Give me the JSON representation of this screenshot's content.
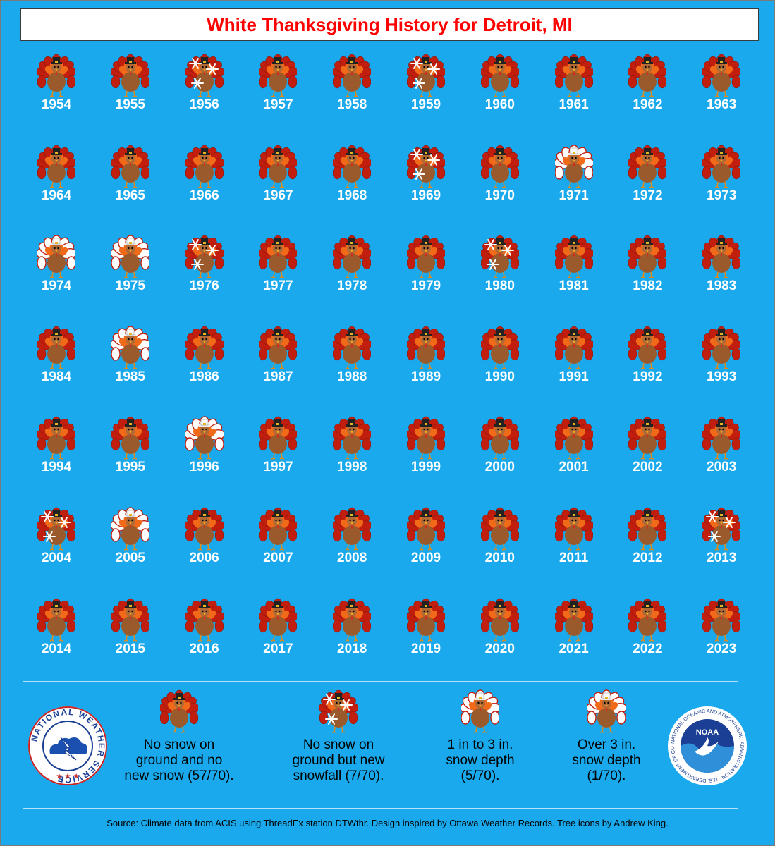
{
  "title": "White Thanksgiving History for Detroit, MI",
  "chart_data": {
    "type": "table",
    "years": [
      1954,
      1955,
      1956,
      1957,
      1958,
      1959,
      1960,
      1961,
      1962,
      1963,
      1964,
      1965,
      1966,
      1967,
      1968,
      1969,
      1970,
      1971,
      1972,
      1973,
      1974,
      1975,
      1976,
      1977,
      1978,
      1979,
      1980,
      1981,
      1982,
      1983,
      1984,
      1985,
      1986,
      1987,
      1988,
      1989,
      1990,
      1991,
      1992,
      1993,
      1994,
      1995,
      1996,
      1997,
      1998,
      1999,
      2000,
      2001,
      2002,
      2003,
      2004,
      2005,
      2006,
      2007,
      2008,
      2009,
      2010,
      2011,
      2012,
      2013,
      2014,
      2015,
      2016,
      2017,
      2018,
      2019,
      2020,
      2021,
      2022,
      2023
    ],
    "categories": [
      "none",
      "none",
      "snowfall",
      "none",
      "none",
      "snowfall",
      "none",
      "none",
      "none",
      "none",
      "none",
      "none",
      "none",
      "none",
      "none",
      "snowfall",
      "none",
      "depth_1_3",
      "none",
      "none",
      "depth_1_3",
      "depth_over_3",
      "snowfall",
      "none",
      "none",
      "none",
      "snowfall",
      "none",
      "none",
      "none",
      "none",
      "depth_1_3",
      "none",
      "none",
      "none",
      "none",
      "none",
      "none",
      "none",
      "none",
      "none",
      "none",
      "depth_1_3",
      "none",
      "none",
      "none",
      "none",
      "none",
      "none",
      "none",
      "snowfall",
      "depth_1_3",
      "none",
      "none",
      "none",
      "none",
      "none",
      "none",
      "none",
      "snowfall",
      "none",
      "none",
      "none",
      "none",
      "none",
      "none",
      "none",
      "none",
      "none",
      "none"
    ]
  },
  "legend": {
    "none": "No snow on ground and no new snow (57/70).",
    "snowfall": "No snow on ground but new snowfall (7/70).",
    "depth_1_3": "1 in to 3 in. snow depth (5/70).",
    "depth_over_3": "Over 3 in. snow depth (1/70)."
  },
  "legend_lines": {
    "none": [
      "No snow on",
      "ground and no",
      "new snow (57/70)."
    ],
    "snowfall": [
      "No snow on",
      "ground but new",
      "snowfall (7/70)."
    ],
    "depth_1_3": [
      "1 in to 3 in.",
      "snow depth",
      "(5/70)."
    ],
    "depth_over_3": [
      "Over 3 in.",
      "snow depth",
      "(1/70)."
    ]
  },
  "logos": {
    "nws": "NATIONAL WEATHER SERVICE",
    "noaa": "NOAA",
    "noaa_ring": "NATIONAL OCEANIC AND ATMOSPHERIC ADMINISTRATION · U.S. DEPARTMENT OF COMMERCE"
  },
  "source": "Source: Climate data from ACIS using ThreadEx station DTWthr. Design inspired by Ottawa Weather Records. Tree icons by Andrew King.",
  "colors": {
    "background": "#1aa9ec",
    "title": "#ff0000",
    "turkey_body": "#9a5a2b",
    "feather_red": "#c21e0e",
    "feather_orange": "#f06a1a",
    "snow": "#ffffff"
  }
}
